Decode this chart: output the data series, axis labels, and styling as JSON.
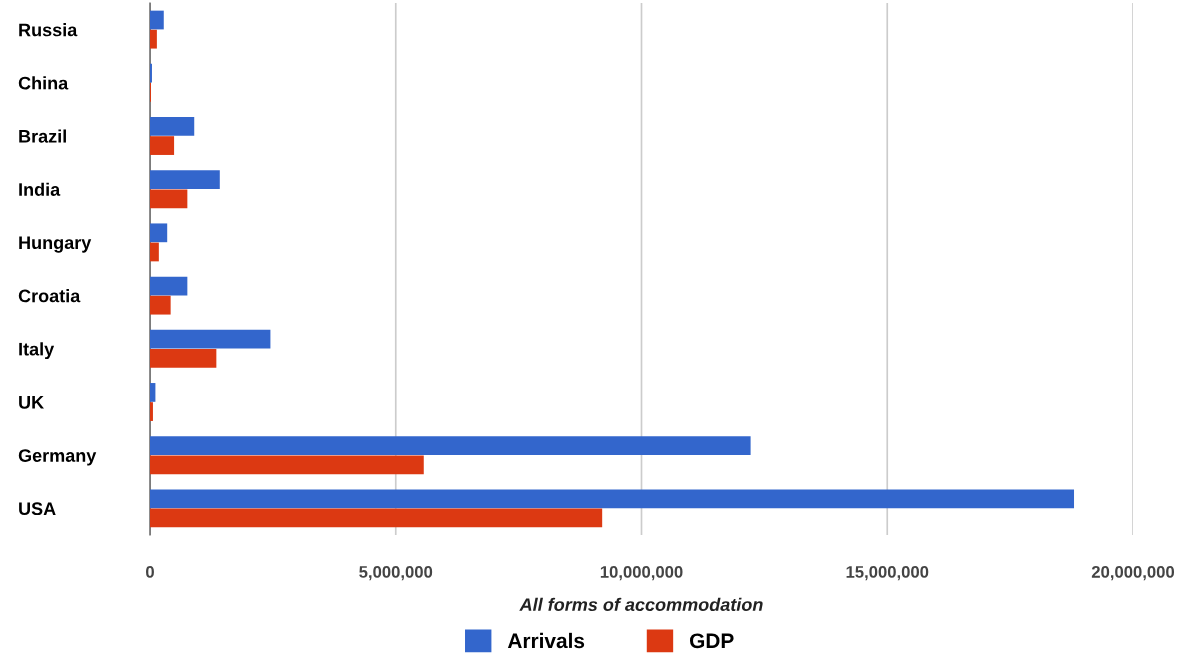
{
  "chart_data": {
    "type": "bar",
    "orientation": "horizontal",
    "xlabel": "All forms of accommodation",
    "categories": [
      "Russia",
      "China",
      "Brazil",
      "India",
      "Hungary",
      "Croatia",
      "Italy",
      "UK",
      "Germany",
      "USA"
    ],
    "series": [
      {
        "name": "Arrivals",
        "color": "#3366cc",
        "values": [
          280000,
          40000,
          900000,
          1420000,
          350000,
          760000,
          2450000,
          110000,
          12220000,
          18800000
        ]
      },
      {
        "name": "GDP",
        "color": "#dc3912",
        "values": [
          140000,
          20000,
          490000,
          760000,
          180000,
          420000,
          1350000,
          60000,
          5570000,
          9200000
        ]
      }
    ],
    "xlim": [
      0,
      20000000
    ],
    "xticks": [
      {
        "value": 0,
        "label": "0"
      },
      {
        "value": 5000000,
        "label": "5,000,000"
      },
      {
        "value": 10000000,
        "label": "10,000,000"
      },
      {
        "value": 15000000,
        "label": "15,000,000"
      },
      {
        "value": 20000000,
        "label": "20,000,000"
      }
    ],
    "grid": "x",
    "legend": "bottom"
  }
}
